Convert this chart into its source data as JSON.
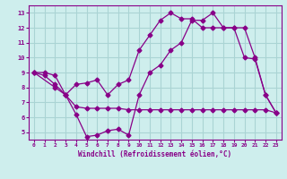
{
  "title": "",
  "xlabel": "Windchill (Refroidissement éolien,°C)",
  "ylabel": "",
  "background_color": "#ceeeed",
  "grid_color": "#aad4d4",
  "line_color": "#880088",
  "xlim": [
    -0.5,
    23.5
  ],
  "ylim": [
    4.5,
    13.5
  ],
  "xticks": [
    0,
    1,
    2,
    3,
    4,
    5,
    6,
    7,
    8,
    9,
    10,
    11,
    12,
    13,
    14,
    15,
    16,
    17,
    18,
    19,
    20,
    21,
    22,
    23
  ],
  "yticks": [
    5,
    6,
    7,
    8,
    9,
    10,
    11,
    12,
    13
  ],
  "line1_x": [
    0,
    1,
    2,
    3,
    4,
    5,
    6,
    7,
    8,
    9,
    10,
    11,
    12,
    13,
    14,
    15,
    16,
    17,
    18,
    19,
    20,
    21,
    22,
    23
  ],
  "line1_y": [
    9.0,
    8.8,
    8.2,
    7.5,
    6.2,
    4.7,
    4.8,
    5.1,
    5.2,
    4.8,
    7.5,
    9.0,
    9.5,
    10.5,
    11.0,
    12.5,
    12.5,
    13.0,
    12.0,
    12.0,
    10.0,
    9.9,
    7.5,
    6.3
  ],
  "line2_x": [
    0,
    2,
    3,
    4,
    5,
    6,
    7,
    8,
    9,
    10,
    11,
    12,
    13,
    14,
    15,
    16,
    17,
    18,
    19,
    20,
    21,
    22,
    23
  ],
  "line2_y": [
    9.0,
    8.0,
    7.5,
    8.2,
    8.3,
    8.5,
    7.5,
    8.2,
    8.5,
    10.5,
    11.5,
    12.5,
    13.0,
    12.6,
    12.6,
    12.0,
    12.0,
    12.0,
    12.0,
    12.0,
    10.0,
    7.5,
    6.3
  ],
  "line3_x": [
    0,
    1,
    2,
    3,
    4,
    5,
    6,
    7,
    8,
    9,
    10,
    11,
    12,
    13,
    14,
    15,
    16,
    17,
    18,
    19,
    20,
    21,
    22,
    23
  ],
  "line3_y": [
    9.0,
    9.0,
    8.8,
    7.5,
    6.7,
    6.6,
    6.6,
    6.6,
    6.6,
    6.5,
    6.5,
    6.5,
    6.5,
    6.5,
    6.5,
    6.5,
    6.5,
    6.5,
    6.5,
    6.5,
    6.5,
    6.5,
    6.5,
    6.3
  ]
}
